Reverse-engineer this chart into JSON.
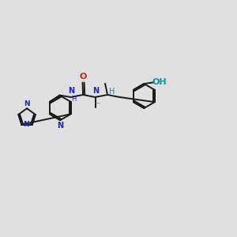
{
  "bg_color": "#e0e0e0",
  "bond_color": "#1a1a1a",
  "N_color": "#2222cc",
  "O_color": "#cc2222",
  "teal_color": "#009999",
  "figsize": [
    3.0,
    3.0
  ],
  "dpi": 100,
  "xlim": [
    0,
    10
  ],
  "ylim": [
    0,
    10
  ]
}
